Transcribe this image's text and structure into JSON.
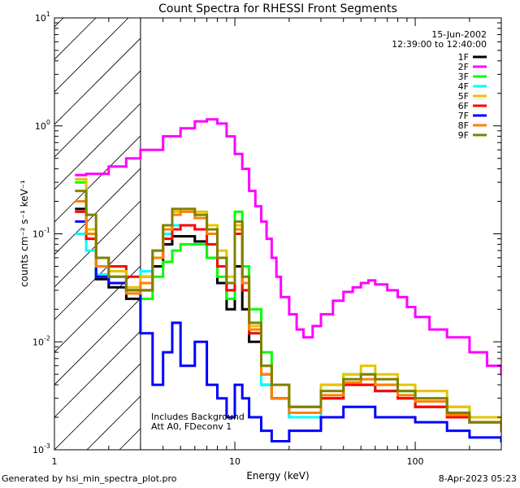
{
  "chart_data": {
    "type": "line",
    "title": "Count Spectra for RHESSI Front Segments",
    "xlabel": "Energy (keV)",
    "ylabel": "counts cm⁻² s⁻¹ keV⁻¹",
    "xscale": "log",
    "yscale": "log",
    "xlim": [
      1,
      300
    ],
    "ylim": [
      0.001,
      10
    ],
    "x_ticks": [
      {
        "v": 1,
        "label": "1"
      },
      {
        "v": 10,
        "label": "10"
      },
      {
        "v": 100,
        "label": "100"
      }
    ],
    "y_ticks": [
      {
        "v": 0.001,
        "base": "10",
        "exp": "-3"
      },
      {
        "v": 0.01,
        "base": "10",
        "exp": "-2"
      },
      {
        "v": 0.1,
        "base": "10",
        "exp": "-1"
      },
      {
        "v": 1,
        "base": "10",
        "exp": "0"
      },
      {
        "v": 10,
        "base": "10",
        "exp": "1"
      }
    ],
    "hatched_region_keV": [
      1,
      3
    ],
    "date": "15-Jun-2002",
    "time_range": "12:39:00 to 12:40:00",
    "annotations": [
      "Includes Background",
      "Att A0, FDeconv 1"
    ],
    "legend_position": "top-right",
    "series": [
      {
        "name": "1F",
        "color": "#000000"
      },
      {
        "name": "2F",
        "color": "#ff00ff"
      },
      {
        "name": "3F",
        "color": "#00ff00"
      },
      {
        "name": "4F",
        "color": "#00ffff"
      },
      {
        "name": "5F",
        "color": "#e6c300"
      },
      {
        "name": "6F",
        "color": "#ff0000"
      },
      {
        "name": "7F",
        "color": "#0000ff"
      },
      {
        "name": "8F",
        "color": "#ff8000"
      },
      {
        "name": "9F",
        "color": "#808000"
      }
    ],
    "curve_points": {
      "2F": [
        [
          1.3,
          0.35
        ],
        [
          1.5,
          0.36
        ],
        [
          2,
          0.42
        ],
        [
          2.5,
          0.5
        ],
        [
          3,
          0.6
        ],
        [
          4,
          0.8
        ],
        [
          5,
          0.95
        ],
        [
          6,
          1.1
        ],
        [
          7,
          1.15
        ],
        [
          8,
          1.05
        ],
        [
          9,
          0.8
        ],
        [
          10,
          0.55
        ],
        [
          11,
          0.4
        ],
        [
          12,
          0.25
        ],
        [
          13,
          0.18
        ],
        [
          14,
          0.13
        ],
        [
          15,
          0.09
        ],
        [
          16,
          0.06
        ],
        [
          17,
          0.04
        ],
        [
          18,
          0.026
        ],
        [
          20,
          0.018
        ],
        [
          22,
          0.013
        ],
        [
          24,
          0.011
        ],
        [
          27,
          0.014
        ],
        [
          30,
          0.018
        ],
        [
          35,
          0.024
        ],
        [
          40,
          0.029
        ],
        [
          45,
          0.032
        ],
        [
          50,
          0.035
        ],
        [
          55,
          0.037
        ],
        [
          60,
          0.034
        ],
        [
          70,
          0.03
        ],
        [
          80,
          0.026
        ],
        [
          90,
          0.021
        ],
        [
          100,
          0.017
        ],
        [
          120,
          0.013
        ],
        [
          150,
          0.011
        ],
        [
          200,
          0.008
        ],
        [
          250,
          0.006
        ],
        [
          300,
          0.005
        ]
      ],
      "1F": [
        [
          1.3,
          0.17
        ],
        [
          1.5,
          0.1
        ],
        [
          1.7,
          0.038
        ],
        [
          2,
          0.032
        ],
        [
          2.5,
          0.025
        ],
        [
          3,
          0.03
        ],
        [
          3.5,
          0.05
        ],
        [
          4,
          0.08
        ],
        [
          4.5,
          0.095
        ],
        [
          5,
          0.095
        ],
        [
          6,
          0.085
        ],
        [
          7,
          0.06
        ],
        [
          8,
          0.035
        ],
        [
          9,
          0.02
        ],
        [
          10,
          0.05
        ],
        [
          11,
          0.02
        ],
        [
          12,
          0.01
        ],
        [
          14,
          0.004
        ],
        [
          16,
          0.003
        ],
        [
          20,
          0.002
        ],
        [
          30,
          0.003
        ],
        [
          40,
          0.004
        ],
        [
          50,
          0.004
        ],
        [
          60,
          0.0035
        ],
        [
          80,
          0.003
        ],
        [
          100,
          0.0025
        ],
        [
          150,
          0.002
        ],
        [
          200,
          0.0018
        ],
        [
          300,
          0.0015
        ]
      ],
      "3F": [
        [
          1.3,
          0.3
        ],
        [
          1.5,
          0.09
        ],
        [
          1.7,
          0.04
        ],
        [
          2,
          0.035
        ],
        [
          2.5,
          0.03
        ],
        [
          3,
          0.025
        ],
        [
          3.5,
          0.04
        ],
        [
          4,
          0.055
        ],
        [
          4.5,
          0.07
        ],
        [
          5,
          0.08
        ],
        [
          6,
          0.08
        ],
        [
          7,
          0.06
        ],
        [
          8,
          0.04
        ],
        [
          9,
          0.025
        ],
        [
          10,
          0.16
        ],
        [
          11,
          0.05
        ],
        [
          12,
          0.02
        ],
        [
          14,
          0.008
        ],
        [
          16,
          0.003
        ],
        [
          20,
          0.002
        ],
        [
          30,
          0.004
        ],
        [
          40,
          0.005
        ],
        [
          50,
          0.005
        ],
        [
          60,
          0.004
        ],
        [
          80,
          0.0035
        ],
        [
          100,
          0.003
        ],
        [
          150,
          0.0025
        ],
        [
          200,
          0.002
        ],
        [
          300,
          0.0015
        ]
      ],
      "4F": [
        [
          1.3,
          0.1
        ],
        [
          1.5,
          0.07
        ],
        [
          1.7,
          0.042
        ],
        [
          2,
          0.04
        ],
        [
          2.5,
          0.03
        ],
        [
          3,
          0.045
        ],
        [
          3.5,
          0.07
        ],
        [
          4,
          0.1
        ],
        [
          4.5,
          0.12
        ],
        [
          5,
          0.12
        ],
        [
          6,
          0.11
        ],
        [
          7,
          0.08
        ],
        [
          8,
          0.05
        ],
        [
          9,
          0.03
        ],
        [
          10,
          0.1
        ],
        [
          11,
          0.03
        ],
        [
          12,
          0.012
        ],
        [
          14,
          0.004
        ],
        [
          16,
          0.003
        ],
        [
          20,
          0.002
        ],
        [
          30,
          0.003
        ],
        [
          40,
          0.004
        ],
        [
          50,
          0.004
        ],
        [
          60,
          0.0035
        ],
        [
          80,
          0.003
        ],
        [
          100,
          0.0025
        ],
        [
          150,
          0.002
        ],
        [
          200,
          0.0018
        ],
        [
          300,
          0.0015
        ]
      ],
      "5F": [
        [
          1.3,
          0.32
        ],
        [
          1.5,
          0.11
        ],
        [
          1.7,
          0.05
        ],
        [
          2,
          0.045
        ],
        [
          2.5,
          0.032
        ],
        [
          3,
          0.04
        ],
        [
          3.5,
          0.07
        ],
        [
          4,
          0.12
        ],
        [
          4.5,
          0.16
        ],
        [
          5,
          0.17
        ],
        [
          6,
          0.16
        ],
        [
          7,
          0.12
        ],
        [
          8,
          0.07
        ],
        [
          9,
          0.04
        ],
        [
          10,
          0.12
        ],
        [
          11,
          0.04
        ],
        [
          12,
          0.014
        ],
        [
          14,
          0.006
        ],
        [
          16,
          0.004
        ],
        [
          20,
          0.0025
        ],
        [
          30,
          0.004
        ],
        [
          40,
          0.005
        ],
        [
          50,
          0.006
        ],
        [
          60,
          0.005
        ],
        [
          80,
          0.004
        ],
        [
          100,
          0.0035
        ],
        [
          150,
          0.0025
        ],
        [
          200,
          0.002
        ],
        [
          300,
          0.0016
        ]
      ],
      "6F": [
        [
          1.3,
          0.16
        ],
        [
          1.5,
          0.09
        ],
        [
          1.7,
          0.06
        ],
        [
          2,
          0.05
        ],
        [
          2.5,
          0.04
        ],
        [
          3,
          0.04
        ],
        [
          3.5,
          0.06
        ],
        [
          4,
          0.09
        ],
        [
          4.5,
          0.11
        ],
        [
          5,
          0.12
        ],
        [
          6,
          0.11
        ],
        [
          7,
          0.08
        ],
        [
          8,
          0.05
        ],
        [
          9,
          0.03
        ],
        [
          10,
          0.1
        ],
        [
          11,
          0.03
        ],
        [
          12,
          0.012
        ],
        [
          14,
          0.005
        ],
        [
          16,
          0.003
        ],
        [
          20,
          0.0025
        ],
        [
          30,
          0.003
        ],
        [
          40,
          0.004
        ],
        [
          50,
          0.004
        ],
        [
          60,
          0.0035
        ],
        [
          80,
          0.003
        ],
        [
          100,
          0.0025
        ],
        [
          150,
          0.002
        ],
        [
          200,
          0.0018
        ],
        [
          300,
          0.0015
        ]
      ],
      "7F": [
        [
          1.3,
          0.13
        ],
        [
          1.5,
          0.1
        ],
        [
          1.7,
          0.04
        ],
        [
          2,
          0.035
        ],
        [
          2.5,
          0.03
        ],
        [
          3,
          0.012
        ],
        [
          3.5,
          0.004
        ],
        [
          4,
          0.008
        ],
        [
          4.5,
          0.015
        ],
        [
          5,
          0.006
        ],
        [
          6,
          0.01
        ],
        [
          7,
          0.004
        ],
        [
          8,
          0.003
        ],
        [
          9,
          0.002
        ],
        [
          10,
          0.004
        ],
        [
          11,
          0.003
        ],
        [
          12,
          0.002
        ],
        [
          14,
          0.0015
        ],
        [
          16,
          0.0012
        ],
        [
          20,
          0.0015
        ],
        [
          30,
          0.002
        ],
        [
          40,
          0.0025
        ],
        [
          50,
          0.0025
        ],
        [
          60,
          0.002
        ],
        [
          80,
          0.002
        ],
        [
          100,
          0.0018
        ],
        [
          150,
          0.0015
        ],
        [
          200,
          0.0013
        ],
        [
          300,
          0.0012
        ]
      ],
      "8F": [
        [
          1.3,
          0.2
        ],
        [
          1.5,
          0.1
        ],
        [
          1.7,
          0.05
        ],
        [
          2,
          0.04
        ],
        [
          2.5,
          0.028
        ],
        [
          3,
          0.035
        ],
        [
          3.5,
          0.06
        ],
        [
          4,
          0.11
        ],
        [
          4.5,
          0.15
        ],
        [
          5,
          0.16
        ],
        [
          6,
          0.14
        ],
        [
          7,
          0.1
        ],
        [
          8,
          0.06
        ],
        [
          9,
          0.035
        ],
        [
          10,
          0.11
        ],
        [
          11,
          0.035
        ],
        [
          12,
          0.013
        ],
        [
          14,
          0.005
        ],
        [
          16,
          0.003
        ],
        [
          20,
          0.0022
        ],
        [
          30,
          0.0032
        ],
        [
          40,
          0.0042
        ],
        [
          50,
          0.0045
        ],
        [
          60,
          0.004
        ],
        [
          80,
          0.0032
        ],
        [
          100,
          0.0028
        ],
        [
          150,
          0.0021
        ],
        [
          200,
          0.0018
        ],
        [
          300,
          0.0015
        ]
      ],
      "9F": [
        [
          1.3,
          0.25
        ],
        [
          1.5,
          0.15
        ],
        [
          1.7,
          0.06
        ],
        [
          2,
          0.04
        ],
        [
          2.5,
          0.03
        ],
        [
          3,
          0.03
        ],
        [
          3.5,
          0.07
        ],
        [
          4,
          0.12
        ],
        [
          4.5,
          0.17
        ],
        [
          5,
          0.17
        ],
        [
          6,
          0.15
        ],
        [
          7,
          0.11
        ],
        [
          8,
          0.06
        ],
        [
          9,
          0.035
        ],
        [
          10,
          0.13
        ],
        [
          11,
          0.04
        ],
        [
          12,
          0.015
        ],
        [
          14,
          0.006
        ],
        [
          16,
          0.004
        ],
        [
          20,
          0.0025
        ],
        [
          30,
          0.0035
        ],
        [
          40,
          0.0045
        ],
        [
          50,
          0.005
        ],
        [
          60,
          0.0045
        ],
        [
          80,
          0.0035
        ],
        [
          100,
          0.003
        ],
        [
          150,
          0.0022
        ],
        [
          200,
          0.0018
        ],
        [
          300,
          0.0015
        ]
      ]
    }
  },
  "footer": {
    "generated_by": "Generated by hsi_min_spectra_plot.pro",
    "timestamp": "8-Apr-2023 05:23"
  }
}
